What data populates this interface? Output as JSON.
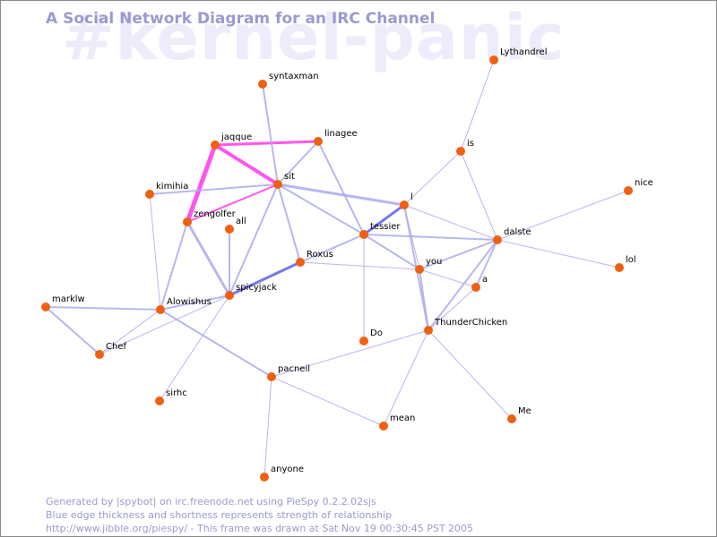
{
  "watermark": "#kernel-panic",
  "title": "A Social Network Diagram for an IRC Channel",
  "footer": {
    "line1": "Generated by |spybot| on irc.freenode.net using PieSpy 0.2.2.02sjs",
    "line2": "Blue edge thickness and shortness represents strength of relationship",
    "line3": "http://www.jibble.org/piespy/ - This frame was drawn at Sat Nov 19 00:30:45 PST 2005"
  },
  "colors": {
    "node": "#f06010",
    "edge": "#aaaaee",
    "edge_strong": "#7777ee",
    "edge_highlight": "#ff55ee"
  },
  "nodes": [
    {
      "id": "Lythandrel"
    },
    {
      "id": "syntaxman"
    },
    {
      "id": "jaqque"
    },
    {
      "id": "linagee"
    },
    {
      "id": "is"
    },
    {
      "id": "sit"
    },
    {
      "id": "kimihia"
    },
    {
      "id": "nice"
    },
    {
      "id": "l"
    },
    {
      "id": "zengolfer"
    },
    {
      "id": "all"
    },
    {
      "id": "tessier"
    },
    {
      "id": "dalste"
    },
    {
      "id": "Roxus"
    },
    {
      "id": "you"
    },
    {
      "id": "lol"
    },
    {
      "id": "spicyjack"
    },
    {
      "id": "a"
    },
    {
      "id": "marklw"
    },
    {
      "id": "Alowishus"
    },
    {
      "id": "ThunderChicken"
    },
    {
      "id": "Do"
    },
    {
      "id": "Chef"
    },
    {
      "id": "pacneil"
    },
    {
      "id": "sirhc"
    },
    {
      "id": "mean"
    },
    {
      "id": "Me"
    },
    {
      "id": "anyone"
    }
  ],
  "edges": [
    {
      "from": "jaqque",
      "to": "zengolfer",
      "kind": "highlight",
      "weight": 5
    },
    {
      "from": "jaqque",
      "to": "sit",
      "kind": "highlight",
      "weight": 4
    },
    {
      "from": "jaqque",
      "to": "linagee",
      "kind": "highlight",
      "weight": 3
    },
    {
      "from": "zengolfer",
      "to": "sit",
      "kind": "highlight",
      "weight": 2
    },
    {
      "from": "Roxus",
      "to": "spicyjack",
      "kind": "strong",
      "weight": 3
    },
    {
      "from": "l",
      "to": "tessier",
      "kind": "strong",
      "weight": 3
    },
    {
      "from": "sit",
      "to": "l",
      "kind": "normal",
      "weight": 3
    },
    {
      "from": "sit",
      "to": "tessier",
      "kind": "normal",
      "weight": 2
    },
    {
      "from": "sit",
      "to": "linagee",
      "kind": "normal",
      "weight": 2
    },
    {
      "from": "sit",
      "to": "kimihia",
      "kind": "normal",
      "weight": 2
    },
    {
      "from": "sit",
      "to": "Roxus",
      "kind": "normal",
      "weight": 2
    },
    {
      "from": "sit",
      "to": "syntaxman",
      "kind": "normal",
      "weight": 2
    },
    {
      "from": "sit",
      "to": "spicyjack",
      "kind": "normal",
      "weight": 2
    },
    {
      "from": "linagee",
      "to": "tessier",
      "kind": "normal",
      "weight": 2
    },
    {
      "from": "zengolfer",
      "to": "spicyjack",
      "kind": "normal",
      "weight": 3
    },
    {
      "from": "zengolfer",
      "to": "Alowishus",
      "kind": "normal",
      "weight": 2
    },
    {
      "from": "tessier",
      "to": "dalste",
      "kind": "normal",
      "weight": 2
    },
    {
      "from": "tessier",
      "to": "you",
      "kind": "normal",
      "weight": 2
    },
    {
      "from": "tessier",
      "to": "Roxus",
      "kind": "normal",
      "weight": 2
    },
    {
      "from": "tessier",
      "to": "Do",
      "kind": "normal",
      "weight": 1
    },
    {
      "from": "spicyjack",
      "to": "Alowishus",
      "kind": "normal",
      "weight": 2
    },
    {
      "from": "spicyjack",
      "to": "all",
      "kind": "normal",
      "weight": 2
    },
    {
      "from": "spicyjack",
      "to": "Chef",
      "kind": "normal",
      "weight": 1
    },
    {
      "from": "spicyjack",
      "to": "sirhc",
      "kind": "normal",
      "weight": 1
    },
    {
      "from": "marklw",
      "to": "Alowishus",
      "kind": "normal",
      "weight": 2
    },
    {
      "from": "marklw",
      "to": "Chef",
      "kind": "normal",
      "weight": 2
    },
    {
      "from": "Alowishus",
      "to": "Chef",
      "kind": "normal",
      "weight": 1
    },
    {
      "from": "Alowishus",
      "to": "pacneil",
      "kind": "normal",
      "weight": 2
    },
    {
      "from": "kimihia",
      "to": "Alowishus",
      "kind": "normal",
      "weight": 1
    },
    {
      "from": "Roxus",
      "to": "you",
      "kind": "normal",
      "weight": 1
    },
    {
      "from": "l",
      "to": "dalste",
      "kind": "normal",
      "weight": 1
    },
    {
      "from": "l",
      "to": "ThunderChicken",
      "kind": "normal",
      "weight": 2
    },
    {
      "from": "l",
      "to": "you",
      "kind": "normal",
      "weight": 1
    },
    {
      "from": "l",
      "to": "is",
      "kind": "normal",
      "weight": 1
    },
    {
      "from": "is",
      "to": "Lythandrel",
      "kind": "normal",
      "weight": 1
    },
    {
      "from": "is",
      "to": "dalste",
      "kind": "normal",
      "weight": 1
    },
    {
      "from": "dalste",
      "to": "nice",
      "kind": "normal",
      "weight": 1
    },
    {
      "from": "dalste",
      "to": "lol",
      "kind": "normal",
      "weight": 1
    },
    {
      "from": "dalste",
      "to": "you",
      "kind": "normal",
      "weight": 2
    },
    {
      "from": "dalste",
      "to": "ThunderChicken",
      "kind": "normal",
      "weight": 2
    },
    {
      "from": "dalste",
      "to": "a",
      "kind": "normal",
      "weight": 2
    },
    {
      "from": "you",
      "to": "ThunderChicken",
      "kind": "normal",
      "weight": 2
    },
    {
      "from": "you",
      "to": "a",
      "kind": "normal",
      "weight": 1
    },
    {
      "from": "a",
      "to": "ThunderChicken",
      "kind": "normal",
      "weight": 1
    },
    {
      "from": "ThunderChicken",
      "to": "pacneil",
      "kind": "normal",
      "weight": 1
    },
    {
      "from": "ThunderChicken",
      "to": "mean",
      "kind": "normal",
      "weight": 1
    },
    {
      "from": "ThunderChicken",
      "to": "Me",
      "kind": "normal",
      "weight": 1
    },
    {
      "from": "pacneil",
      "to": "mean",
      "kind": "normal",
      "weight": 1
    },
    {
      "from": "pacneil",
      "to": "anyone",
      "kind": "normal",
      "weight": 1
    }
  ]
}
